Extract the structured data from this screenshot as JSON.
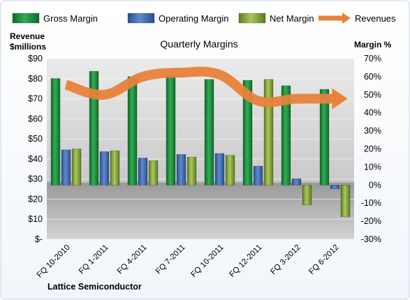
{
  "chart_data": {
    "type": "bar",
    "title": "Quarterly Margins",
    "footer": "Lattice Semiconductor",
    "left_axis": {
      "title_line1": "Revenue",
      "title_line2": "$millions",
      "ticks": [
        "$-",
        "$10",
        "$20",
        "$30",
        "$40",
        "$50",
        "$60",
        "$70",
        "$80",
        "$90"
      ],
      "min": 0,
      "max": 90
    },
    "right_axis": {
      "title": "Margin %",
      "ticks": [
        "-30%",
        "-20%",
        "-10%",
        "0%",
        "10%",
        "20%",
        "30%",
        "40%",
        "50%",
        "60%",
        "70%"
      ],
      "min": -30,
      "max": 70
    },
    "categories": [
      "FQ 10-2010",
      "FQ 1-2011",
      "FQ 4-2011",
      "FQ 7-2011",
      "FQ 10-2011",
      "FQ 12-2011",
      "FQ 3-2012",
      "FQ 6-2012"
    ],
    "series": [
      {
        "name": "Gross Margin",
        "axis": "right",
        "values": [
          59,
          63,
          60,
          61,
          58.5,
          58,
          55,
          53
        ],
        "color": "#1E8E3E"
      },
      {
        "name": "Operating Margin",
        "axis": "right",
        "values": [
          19.5,
          18.5,
          15,
          17,
          17.5,
          10.5,
          3.5,
          -2
        ],
        "color": "#3F6FB5"
      },
      {
        "name": "Net Margin",
        "axis": "right",
        "values": [
          20,
          19,
          13.5,
          15.5,
          16.5,
          58.5,
          -11,
          -17.5
        ],
        "color": "#8AAA3C"
      },
      {
        "name": "Revenues",
        "axis": "left",
        "type": "line",
        "values": [
          77,
          72,
          81,
          83,
          82,
          69,
          70,
          70
        ],
        "color": "#E8823A"
      }
    ],
    "legend_position": "top",
    "grid": true
  }
}
